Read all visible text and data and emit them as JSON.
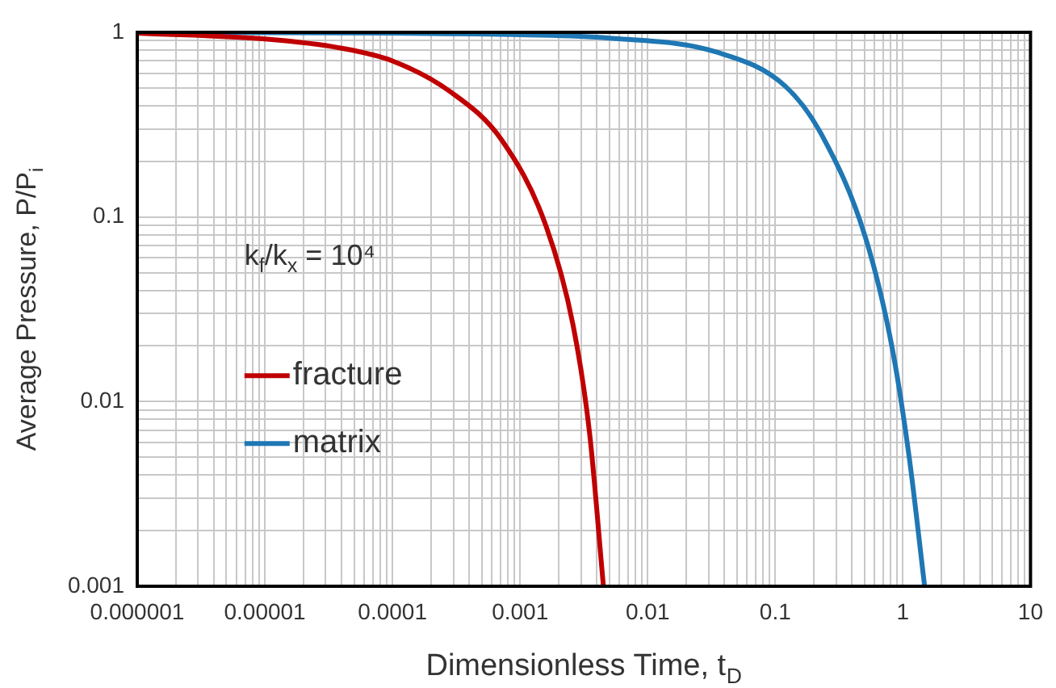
{
  "chart_data": {
    "type": "line",
    "xlabel": "Dimensionless Time, t$_{D}$",
    "ylabel": "Average Pressure, P/P$_{i}$",
    "log": "xy",
    "xlim": [
      1e-06,
      10
    ],
    "ylim": [
      0.001,
      1
    ],
    "xticks": [
      {
        "value": 1e-06,
        "label": "0.000001"
      },
      {
        "value": 1e-05,
        "label": "0.00001"
      },
      0.0001,
      0.001,
      0.01,
      0.1,
      1,
      10
    ],
    "yticks": [
      0.001,
      0.01,
      0.1,
      1
    ],
    "grid": true,
    "legend": "left",
    "marker": "none",
    "line_style": "solid",
    "annotations": [
      "k$_{f}$/k$_{x}$ = 10⁴"
    ],
    "series": [
      {
        "name": "fracture",
        "color": "#c00000",
        "x": [
          1e-06,
          1e-05,
          4e-05,
          0.0001,
          0.00028,
          0.00072,
          0.0016,
          0.0026,
          0.0035,
          0.0045
        ],
        "values": [
          0.99,
          0.92,
          0.82,
          0.7,
          0.48,
          0.26,
          0.089,
          0.026,
          0.0068,
          0.001
        ]
      },
      {
        "name": "matrix",
        "color": "#1f77b4",
        "x": [
          1e-06,
          0.0001,
          0.001,
          0.005,
          0.035,
          0.12,
          0.23,
          0.51,
          0.83,
          1.12,
          1.48
        ],
        "values": [
          1,
          0.99,
          0.97,
          0.93,
          0.78,
          0.51,
          0.28,
          0.077,
          0.019,
          0.005,
          0.001
        ]
      }
    ]
  }
}
